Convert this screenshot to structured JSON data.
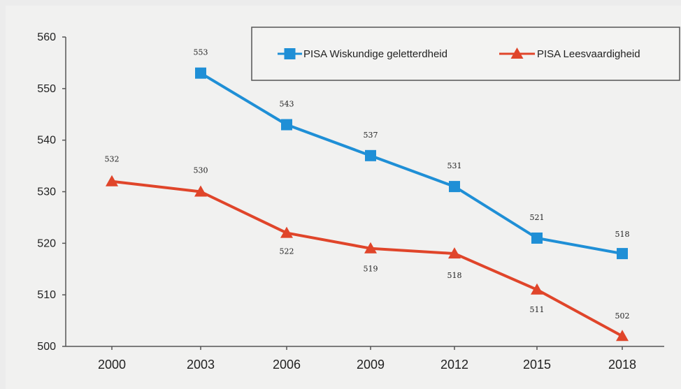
{
  "chart_data": {
    "type": "line",
    "categories": [
      "2000",
      "2003",
      "2006",
      "2009",
      "2012",
      "2015",
      "2018"
    ],
    "ylim": [
      500,
      560
    ],
    "yticks": [
      500,
      510,
      520,
      530,
      540,
      550,
      560
    ],
    "grid": false,
    "legend_position": "top-right",
    "series": [
      {
        "name": "PISA Wiskundige geletterdheid",
        "color": "#1f8fd6",
        "marker": "square",
        "values": [
          null,
          553,
          543,
          537,
          531,
          521,
          518
        ],
        "labels": [
          "",
          "553",
          "543",
          "537",
          "531",
          "521",
          "518"
        ]
      },
      {
        "name": "PISA Leesvaardigheid",
        "color": "#e0452a",
        "marker": "triangle",
        "values": [
          532,
          530,
          522,
          519,
          518,
          511,
          502
        ],
        "labels": [
          "532",
          "530",
          "522",
          "519",
          "518",
          "511",
          "502"
        ]
      }
    ]
  }
}
